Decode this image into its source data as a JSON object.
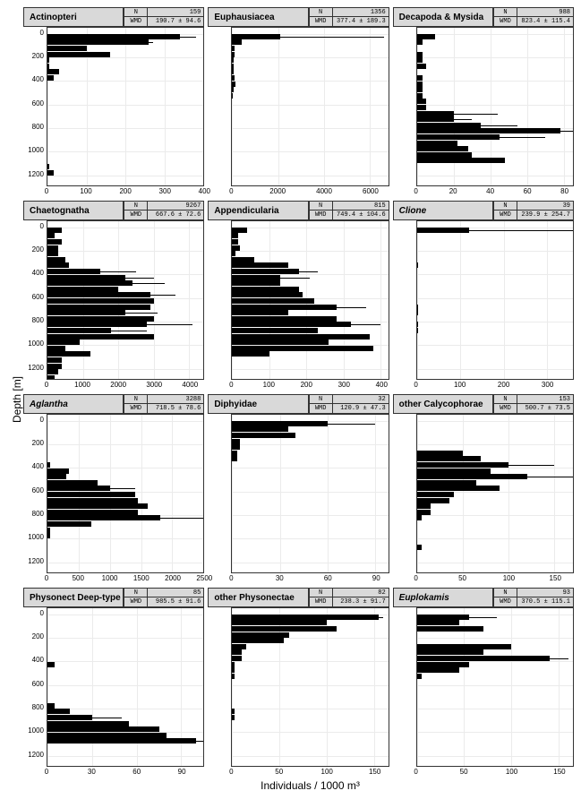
{
  "global": {
    "ylabel": "Depth [m]",
    "xlabel": "Individuals / 1000 m³",
    "background_color": "#ffffff",
    "grid_color": "#ebebeb",
    "strip_bg": "#d9d9d9",
    "bar_color": "#000000",
    "axis_fontsize": 8,
    "title_fontsize": 10,
    "label_fontsize": 12
  },
  "y": {
    "min": -50,
    "max": 1300,
    "ticks": [
      0,
      200,
      400,
      600,
      800,
      1000,
      1200
    ],
    "depths": [
      25,
      75,
      125,
      175,
      225,
      275,
      325,
      375,
      425,
      475,
      525,
      575,
      625,
      675,
      725,
      775,
      825,
      875,
      925,
      975,
      1025,
      1075,
      1125,
      1175,
      1225,
      1275
    ]
  },
  "panels": [
    {
      "title": "Actinopteri",
      "italic": false,
      "N": 159,
      "WMD": "190.7 ± 94.6",
      "xmax": 400,
      "xticks": [
        0,
        100,
        200,
        300,
        400
      ],
      "values": [
        340,
        260,
        100,
        160,
        5,
        5,
        30,
        15,
        0,
        0,
        0,
        0,
        0,
        0,
        0,
        0,
        0,
        0,
        0,
        0,
        0,
        0,
        5,
        15,
        0,
        0
      ],
      "errs": [
        40,
        10,
        0,
        0,
        0,
        0,
        0,
        0,
        0,
        0,
        0,
        0,
        0,
        0,
        0,
        0,
        0,
        0,
        0,
        0,
        0,
        0,
        0,
        0,
        0,
        0
      ]
    },
    {
      "title": "Euphausiacea",
      "italic": false,
      "N": 1356,
      "WMD": "377.4 ± 189.3",
      "xmax": 6800,
      "xticks": [
        0,
        2000,
        4000,
        6000
      ],
      "values": [
        2100,
        400,
        100,
        100,
        50,
        50,
        50,
        100,
        150,
        50,
        20,
        0,
        0,
        0,
        0,
        0,
        0,
        0,
        0,
        0,
        0,
        0,
        0,
        0,
        0,
        0
      ],
      "errs": [
        4500,
        0,
        0,
        0,
        0,
        0,
        0,
        0,
        0,
        0,
        0,
        0,
        0,
        0,
        0,
        0,
        0,
        0,
        0,
        0,
        0,
        0,
        0,
        0,
        0,
        0
      ]
    },
    {
      "title": "Decapoda & Mysida",
      "italic": false,
      "N": 988,
      "WMD": "823.4 ± 115.4",
      "xmax": 85,
      "xticks": [
        0,
        20,
        40,
        60,
        80
      ],
      "values": [
        10,
        3,
        0,
        3,
        3,
        5,
        0,
        3,
        3,
        3,
        3,
        5,
        5,
        20,
        20,
        35,
        78,
        45,
        22,
        28,
        30,
        48,
        0,
        0,
        0,
        0
      ],
      "errs": [
        0,
        0,
        0,
        0,
        0,
        0,
        0,
        0,
        0,
        0,
        0,
        0,
        0,
        24,
        10,
        20,
        7,
        25,
        0,
        0,
        0,
        0,
        0,
        0,
        0,
        0
      ]
    },
    {
      "title": "Chaetognatha",
      "italic": false,
      "N": 9267,
      "WMD": "667.6 ± 72.6",
      "xmax": 4400,
      "xticks": [
        0,
        1000,
        2000,
        3000,
        4000
      ],
      "values": [
        400,
        200,
        400,
        300,
        300,
        500,
        600,
        1500,
        2200,
        2400,
        2000,
        2900,
        3000,
        2900,
        2200,
        3000,
        2800,
        1800,
        3000,
        900,
        500,
        1200,
        400,
        400,
        300,
        200
      ],
      "errs": [
        0,
        0,
        0,
        0,
        0,
        0,
        0,
        1000,
        800,
        900,
        0,
        700,
        0,
        0,
        900,
        0,
        1300,
        1000,
        0,
        0,
        0,
        0,
        0,
        0,
        0,
        0
      ]
    },
    {
      "title": "Appendicularia",
      "italic": false,
      "N": 815,
      "WMD": "749.4 ± 104.6",
      "xmax": 420,
      "xticks": [
        0,
        100,
        200,
        300,
        400
      ],
      "values": [
        40,
        15,
        15,
        20,
        10,
        60,
        150,
        180,
        130,
        130,
        180,
        190,
        220,
        280,
        150,
        280,
        320,
        230,
        370,
        260,
        380,
        100,
        0,
        0,
        0,
        0
      ],
      "errs": [
        0,
        0,
        0,
        0,
        0,
        0,
        0,
        50,
        80,
        0,
        0,
        0,
        0,
        80,
        0,
        0,
        80,
        0,
        0,
        0,
        0,
        0,
        0,
        0,
        0,
        0
      ]
    },
    {
      "title": "Clione",
      "italic": true,
      "N": 39,
      "WMD": "239.9 ± 254.7",
      "xmax": 360,
      "xticks": [
        0,
        100,
        200,
        300
      ],
      "values": [
        120,
        0,
        0,
        0,
        0,
        0,
        3,
        0,
        0,
        0,
        0,
        0,
        0,
        3,
        3,
        0,
        3,
        3,
        0,
        0,
        0,
        0,
        0,
        0,
        0,
        0
      ],
      "errs": [
        240,
        0,
        0,
        0,
        0,
        0,
        0,
        0,
        0,
        0,
        0,
        0,
        0,
        0,
        0,
        0,
        0,
        0,
        0,
        0,
        0,
        0,
        0,
        0,
        0,
        0
      ]
    },
    {
      "title": "Aglantha",
      "italic": true,
      "N": 3288,
      "WMD": "718.5 ± 78.6",
      "xmax": 2500,
      "xticks": [
        0,
        500,
        1000,
        1500,
        2000,
        2500
      ],
      "values": [
        0,
        0,
        0,
        0,
        0,
        0,
        0,
        50,
        350,
        300,
        800,
        1000,
        1400,
        1450,
        1600,
        1450,
        1800,
        700,
        50,
        50,
        0,
        0,
        0,
        0,
        0,
        0
      ],
      "errs": [
        0,
        0,
        0,
        0,
        0,
        0,
        0,
        0,
        0,
        0,
        0,
        400,
        0,
        0,
        0,
        0,
        700,
        0,
        0,
        0,
        0,
        0,
        0,
        0,
        0,
        0
      ]
    },
    {
      "title": "Diphyidae",
      "italic": false,
      "N": 32,
      "WMD": "120.9 ± 47.3",
      "xmax": 98,
      "xticks": [
        0,
        30,
        60,
        90
      ],
      "values": [
        60,
        35,
        40,
        5,
        5,
        3,
        3,
        0,
        0,
        0,
        0,
        0,
        0,
        0,
        0,
        0,
        0,
        0,
        0,
        0,
        0,
        0,
        0,
        0,
        0,
        0
      ],
      "errs": [
        30,
        0,
        0,
        0,
        0,
        0,
        0,
        0,
        0,
        0,
        0,
        0,
        0,
        0,
        0,
        0,
        0,
        0,
        0,
        0,
        0,
        0,
        0,
        0,
        0,
        0
      ]
    },
    {
      "title": "other Calycophorae",
      "italic": false,
      "N": 153,
      "WMD": "500.7 ± 73.5",
      "xmax": 170,
      "xticks": [
        0,
        50,
        100,
        150
      ],
      "values": [
        0,
        0,
        0,
        0,
        0,
        50,
        70,
        100,
        80,
        120,
        65,
        90,
        40,
        35,
        15,
        15,
        5,
        0,
        0,
        0,
        0,
        5,
        0,
        0,
        0,
        0
      ],
      "errs": [
        0,
        0,
        0,
        0,
        0,
        0,
        0,
        50,
        0,
        50,
        0,
        0,
        0,
        0,
        0,
        0,
        0,
        0,
        0,
        0,
        0,
        0,
        0,
        0,
        0,
        0
      ]
    },
    {
      "title": "Physonect Deep-type",
      "italic": false,
      "N": 85,
      "WMD": "985.5 ± 91.6",
      "xmax": 105,
      "xticks": [
        0,
        30,
        60,
        90
      ],
      "values": [
        0,
        0,
        0,
        0,
        0,
        0,
        0,
        0,
        5,
        0,
        0,
        0,
        0,
        0,
        0,
        5,
        15,
        30,
        55,
        75,
        80,
        100,
        0,
        0,
        0,
        0
      ],
      "errs": [
        0,
        0,
        0,
        0,
        0,
        0,
        0,
        0,
        0,
        0,
        0,
        0,
        0,
        0,
        0,
        0,
        0,
        20,
        0,
        0,
        0,
        5,
        0,
        0,
        0,
        0
      ]
    },
    {
      "title": "other Physonectae",
      "italic": false,
      "N": 82,
      "WMD": "238.3 ± 91.7",
      "xmax": 165,
      "xticks": [
        0,
        50,
        100,
        150
      ],
      "values": [
        155,
        100,
        110,
        60,
        55,
        15,
        10,
        10,
        3,
        3,
        3,
        0,
        0,
        0,
        0,
        0,
        3,
        3,
        0,
        0,
        0,
        0,
        0,
        0,
        0,
        0
      ],
      "errs": [
        5,
        0,
        0,
        0,
        0,
        0,
        0,
        0,
        0,
        0,
        0,
        0,
        0,
        0,
        0,
        0,
        0,
        0,
        0,
        0,
        0,
        0,
        0,
        0,
        0,
        0
      ]
    },
    {
      "title": "Euplokamis",
      "italic": true,
      "N": 93,
      "WMD": "370.5 ± 115.1",
      "xmax": 165,
      "xticks": [
        0,
        50,
        100,
        150
      ],
      "values": [
        55,
        45,
        70,
        0,
        0,
        100,
        70,
        140,
        55,
        45,
        5,
        0,
        0,
        0,
        0,
        0,
        0,
        0,
        0,
        0,
        0,
        0,
        0,
        0,
        0,
        0
      ],
      "errs": [
        30,
        0,
        0,
        0,
        0,
        0,
        0,
        20,
        0,
        0,
        0,
        0,
        0,
        0,
        0,
        0,
        0,
        0,
        0,
        0,
        0,
        0,
        0,
        0,
        0,
        0
      ]
    }
  ],
  "labels": {
    "N": "N",
    "WMD": "WMD"
  }
}
